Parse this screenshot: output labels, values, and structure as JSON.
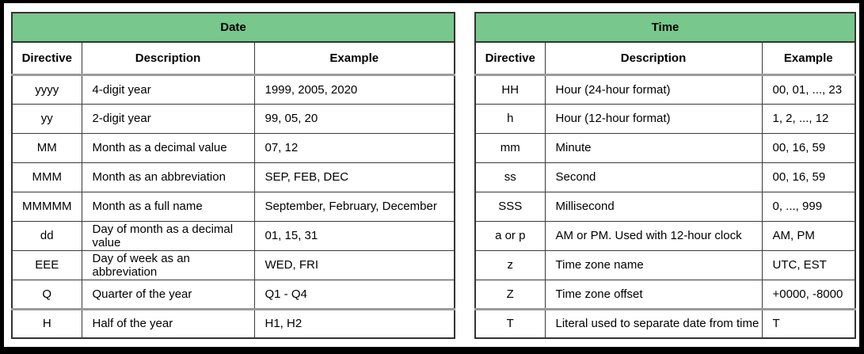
{
  "colors": {
    "header_green": "#78c78c",
    "border_dark": "#3a3a3a",
    "border_gray": "#9a9a9a",
    "frame_black": "#000000"
  },
  "date_table": {
    "title": "Date",
    "columns": [
      "Directive",
      "Description",
      "Example"
    ],
    "rows": [
      [
        "yyyy",
        "4-digit year",
        "1999, 2005, 2020"
      ],
      [
        "yy",
        "2-digit year",
        "99, 05, 20"
      ],
      [
        "MM",
        "Month as a decimal value",
        "07, 12"
      ],
      [
        "MMM",
        "Month as an abbreviation",
        "SEP, FEB, DEC"
      ],
      [
        "MMMMM",
        "Month as a full name",
        "September, February, December"
      ],
      [
        "dd",
        "Day of month as a decimal value",
        "01, 15, 31"
      ],
      [
        "EEE",
        "Day of week as an abbreviation",
        "WED, FRI"
      ],
      [
        "Q",
        "Quarter of the year",
        "Q1 - Q4"
      ],
      [
        "H",
        "Half of the year",
        "H1, H2"
      ]
    ]
  },
  "time_table": {
    "title": "Time",
    "columns": [
      "Directive",
      "Description",
      "Example"
    ],
    "rows": [
      [
        "HH",
        "Hour (24-hour format)",
        "00, 01, ..., 23"
      ],
      [
        "h",
        "Hour (12-hour format)",
        "1, 2, ..., 12"
      ],
      [
        "mm",
        "Minute",
        "00, 16, 59"
      ],
      [
        "ss",
        "Second",
        "00, 16, 59"
      ],
      [
        "SSS",
        "Millisecond",
        "0, ..., 999"
      ],
      [
        "a or p",
        "AM or PM. Used with 12-hour clock",
        "AM, PM"
      ],
      [
        "z",
        "Time zone name",
        "UTC, EST"
      ],
      [
        "Z",
        "Time zone offset",
        "+0000, -8000"
      ],
      [
        "T",
        "Literal used to separate date from time",
        "T"
      ]
    ]
  }
}
